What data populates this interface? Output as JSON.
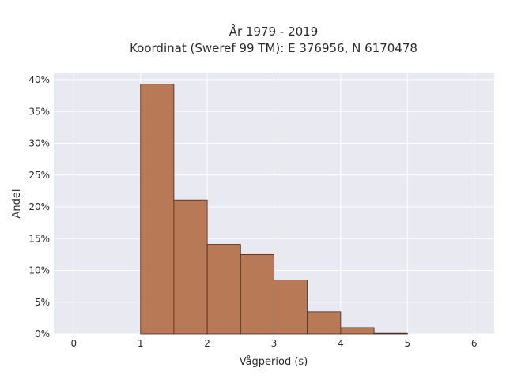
{
  "chart_data": {
    "type": "bar",
    "title": "År 1979 - 2019",
    "subtitle": "Koordinat (Sweref 99 TM): E 376956, N 6170478",
    "xlabel": "Vågperiod (s)",
    "ylabel": "Andel",
    "xlim": [
      -0.3,
      6.3
    ],
    "ylim": [
      0,
      41
    ],
    "x_ticks": [
      0,
      1,
      2,
      3,
      4,
      5,
      6
    ],
    "y_ticks": [
      0,
      5,
      10,
      15,
      20,
      25,
      30,
      35,
      40
    ],
    "y_tick_format": "percent",
    "grid": true,
    "bin_width": 0.5,
    "bins": [
      {
        "start": 1.0,
        "end": 1.5,
        "value": 39.3
      },
      {
        "start": 1.5,
        "end": 2.0,
        "value": 21.1
      },
      {
        "start": 2.0,
        "end": 2.5,
        "value": 14.1
      },
      {
        "start": 2.5,
        "end": 3.0,
        "value": 12.5
      },
      {
        "start": 3.0,
        "end": 3.5,
        "value": 8.5
      },
      {
        "start": 3.5,
        "end": 4.0,
        "value": 3.5
      },
      {
        "start": 4.0,
        "end": 4.5,
        "value": 1.0
      },
      {
        "start": 4.5,
        "end": 5.0,
        "value": 0.1
      }
    ],
    "colors": {
      "bar_fill": "#b87a56",
      "bar_stroke": "#4a2a18",
      "plot_bg": "#e9e9f1",
      "grid": "#ffffff"
    }
  }
}
